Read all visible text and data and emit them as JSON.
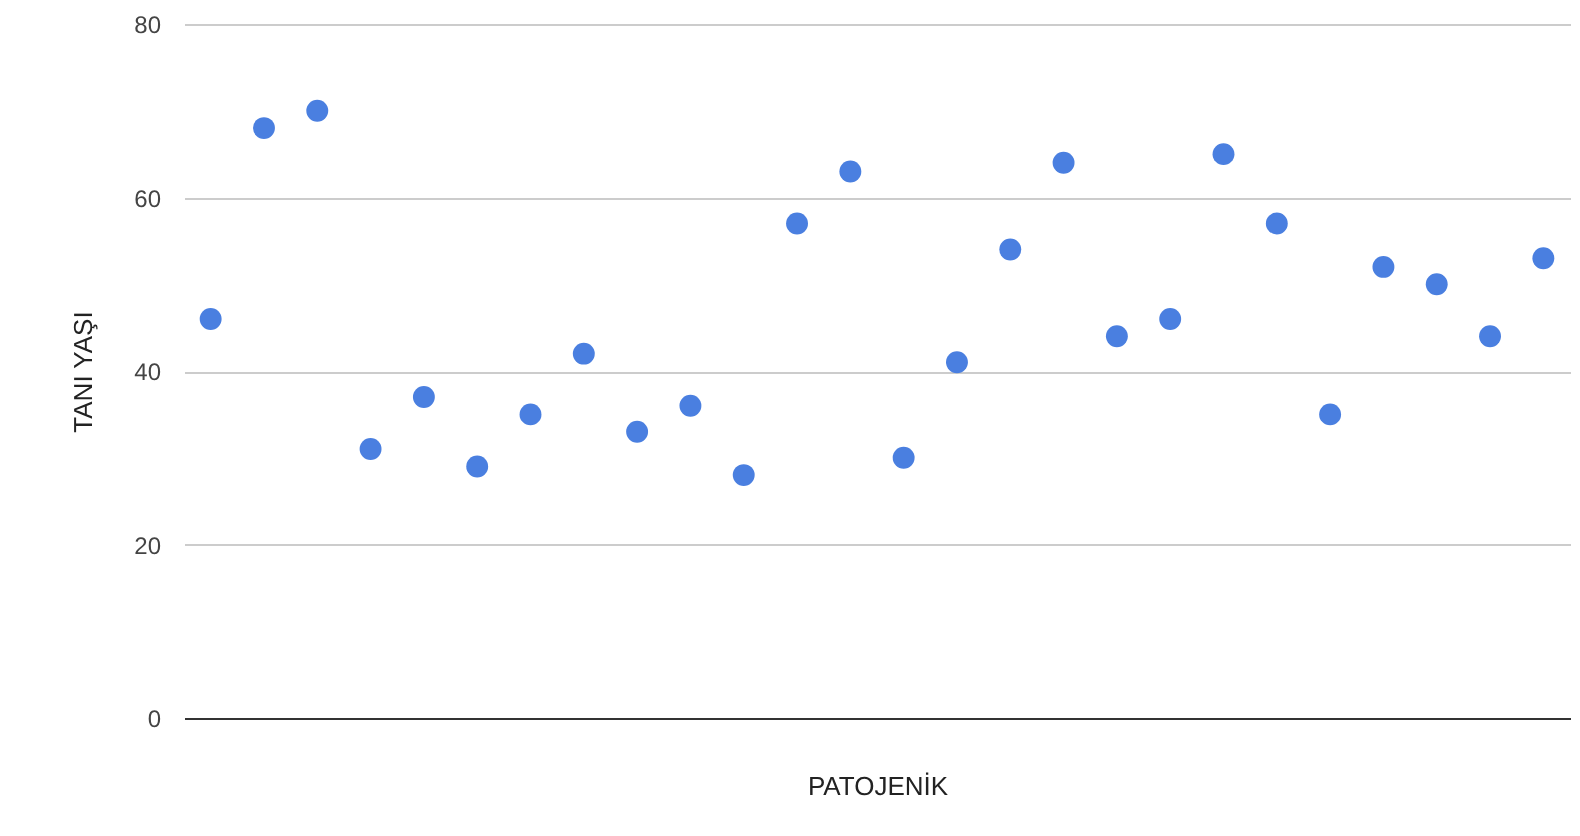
{
  "chart_data": {
    "type": "scatter",
    "xlabel": "PATOJENİK",
    "ylabel": "TANI YAŞI",
    "categories": [
      null,
      null,
      null,
      null,
      null,
      null,
      null,
      null,
      null,
      null,
      null,
      null,
      null,
      null,
      null,
      null,
      null,
      null,
      null,
      null,
      null,
      null,
      null,
      null,
      null,
      null
    ],
    "series": [
      {
        "color": "#4a7fe0",
        "values": [
          46,
          68,
          70,
          31,
          37,
          29,
          35,
          42,
          33,
          36,
          28,
          57,
          63,
          30,
          41,
          54,
          64,
          44,
          46,
          65,
          57,
          35,
          52,
          50,
          44,
          53
        ]
      }
    ],
    "ylim": [
      0,
      80
    ],
    "yticks": [
      0,
      20,
      40,
      60,
      80
    ],
    "grid": "y",
    "tick_labels": "y",
    "marker": "circle"
  }
}
